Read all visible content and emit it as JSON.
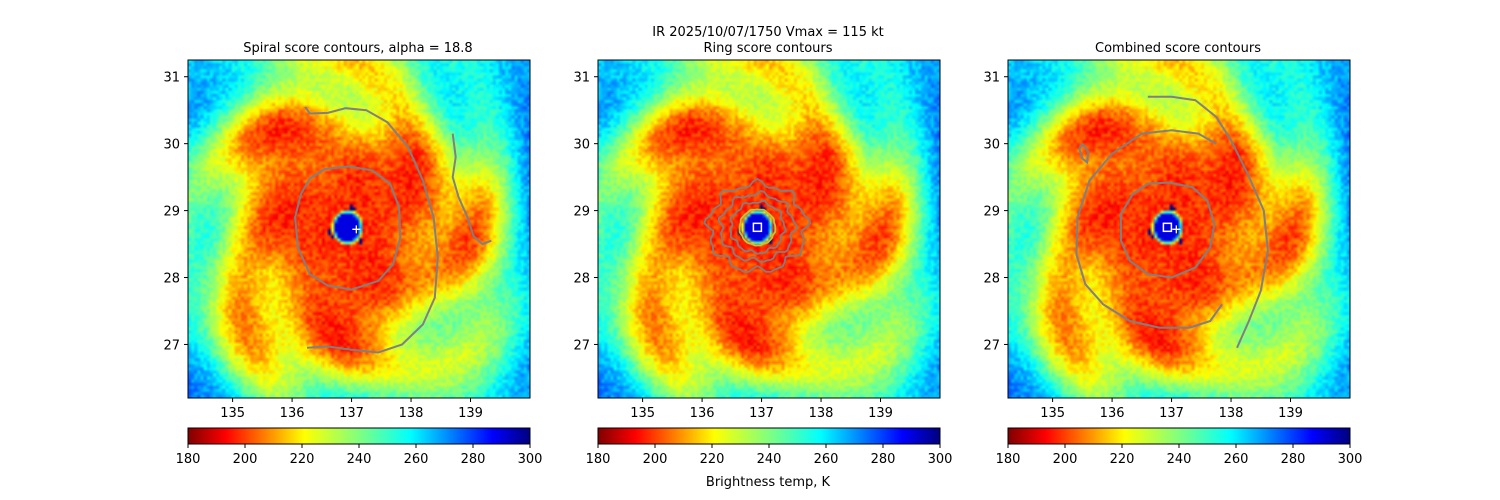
{
  "figure": {
    "suptitle": "IR  2025/10/07/1750    Vmax = 115 kt",
    "colorbar_label": "Brightness temp, K"
  },
  "chart_data": [
    {
      "type": "heatmap",
      "title": "Spiral score contours, alpha = 18.8",
      "xlabel": "",
      "ylabel": "",
      "xlim": [
        134.25,
        140.0
      ],
      "ylim": [
        26.2,
        31.25
      ],
      "xticks": [
        135,
        136,
        137,
        138,
        139
      ],
      "yticks": [
        27,
        28,
        29,
        30,
        31
      ],
      "colorbar": {
        "label": "",
        "range": [
          180,
          300
        ],
        "ticks": [
          180,
          200,
          220,
          240,
          260,
          280,
          300
        ],
        "colormap": "jet_r"
      },
      "field": {
        "variable": "brightness temperature (K)",
        "eye_center": [
          136.93,
          28.75
        ],
        "eye_temp": 290,
        "eye_radius_deg": 0.28,
        "core_temp": 198,
        "background_temp": 262
      },
      "markers": [
        {
          "kind": "plus",
          "x": 137.08,
          "y": 28.72,
          "color": "#ffffff"
        }
      ],
      "contours": [
        {
          "color": "#808080",
          "points": [
            [
              136.22,
              30.55
            ],
            [
              136.3,
              30.45
            ],
            [
              136.6,
              30.46
            ],
            [
              136.9,
              30.53
            ],
            [
              137.25,
              30.5
            ],
            [
              137.6,
              30.32
            ],
            [
              137.95,
              29.95
            ],
            [
              138.2,
              29.45
            ],
            [
              138.38,
              28.9
            ],
            [
              138.45,
              28.3
            ],
            [
              138.4,
              27.7
            ],
            [
              138.2,
              27.3
            ],
            [
              137.85,
              27.0
            ],
            [
              137.45,
              26.88
            ],
            [
              137.0,
              26.92
            ],
            [
              136.6,
              26.97
            ],
            [
              136.25,
              26.95
            ]
          ]
        },
        {
          "color": "#808080",
          "points": [
            [
              136.3,
              29.48
            ],
            [
              136.55,
              29.62
            ],
            [
              136.95,
              29.66
            ],
            [
              137.35,
              29.6
            ],
            [
              137.65,
              29.4
            ],
            [
              137.8,
              29.05
            ],
            [
              137.82,
              28.6
            ],
            [
              137.7,
              28.2
            ],
            [
              137.45,
              27.95
            ],
            [
              137.0,
              27.82
            ],
            [
              136.6,
              27.88
            ],
            [
              136.3,
              28.05
            ],
            [
              136.1,
              28.45
            ],
            [
              136.05,
              28.9
            ],
            [
              136.15,
              29.25
            ],
            [
              136.3,
              29.48
            ]
          ]
        },
        {
          "color": "#808080",
          "points": [
            [
              138.7,
              30.15
            ],
            [
              138.75,
              29.8
            ],
            [
              138.7,
              29.5
            ],
            [
              138.8,
              29.2
            ],
            [
              138.95,
              28.9
            ],
            [
              139.05,
              28.62
            ],
            [
              139.2,
              28.5
            ],
            [
              139.35,
              28.55
            ]
          ]
        }
      ]
    },
    {
      "type": "heatmap",
      "title": "Ring score contours",
      "xlabel": "",
      "ylabel": "",
      "xlim": [
        134.25,
        140.0
      ],
      "ylim": [
        26.2,
        31.25
      ],
      "xticks": [
        135,
        136,
        137,
        138,
        139
      ],
      "yticks": [
        27,
        28,
        29,
        30,
        31
      ],
      "colorbar": {
        "label": "Brightness temp, K",
        "range": [
          180,
          300
        ],
        "ticks": [
          180,
          200,
          220,
          240,
          260,
          280,
          300
        ],
        "colormap": "jet_r"
      },
      "field": {
        "variable": "brightness temperature (K)",
        "eye_center": [
          136.93,
          28.75
        ],
        "eye_temp": 290,
        "eye_radius_deg": 0.28,
        "core_temp": 198,
        "background_temp": 262
      },
      "markers": [
        {
          "kind": "square",
          "x": 136.93,
          "y": 28.75,
          "color": "#ffffff"
        }
      ],
      "contours": [
        {
          "color": "#808080",
          "ring": true,
          "cx": 136.93,
          "cy": 28.75,
          "rx": 0.82,
          "ry": 0.65,
          "jitter": 0.07
        },
        {
          "color": "#808080",
          "ring": true,
          "cx": 136.93,
          "cy": 28.75,
          "rx": 0.62,
          "ry": 0.5,
          "jitter": 0.06
        },
        {
          "color": "#808080",
          "ring": true,
          "cx": 136.93,
          "cy": 28.75,
          "rx": 0.45,
          "ry": 0.38,
          "jitter": 0.05
        },
        {
          "color": "#b8c83a",
          "ring": true,
          "cx": 136.93,
          "cy": 28.75,
          "rx": 0.3,
          "ry": 0.27,
          "jitter": 0.02
        }
      ]
    },
    {
      "type": "heatmap",
      "title": "Combined score contours",
      "xlabel": "",
      "ylabel": "",
      "xlim": [
        134.25,
        140.0
      ],
      "ylim": [
        26.2,
        31.25
      ],
      "xticks": [
        135,
        136,
        137,
        138,
        139
      ],
      "yticks": [
        27,
        28,
        29,
        30,
        31
      ],
      "colorbar": {
        "label": "",
        "range": [
          180,
          300
        ],
        "ticks": [
          180,
          200,
          220,
          240,
          260,
          280,
          300
        ],
        "colormap": "jet_r"
      },
      "field": {
        "variable": "brightness temperature (K)",
        "eye_center": [
          136.93,
          28.75
        ],
        "eye_temp": 290,
        "eye_radius_deg": 0.28,
        "core_temp": 198,
        "background_temp": 262
      },
      "markers": [
        {
          "kind": "square",
          "x": 136.93,
          "y": 28.75,
          "color": "#ffffff"
        },
        {
          "kind": "plus",
          "x": 137.08,
          "y": 28.72,
          "color": "#ffffff"
        }
      ],
      "contours": [
        {
          "color": "#808080",
          "points": [
            [
              136.6,
              30.7
            ],
            [
              137.0,
              30.7
            ],
            [
              137.4,
              30.65
            ],
            [
              137.75,
              30.4
            ],
            [
              138.0,
              30.05
            ],
            [
              138.28,
              29.55
            ],
            [
              138.55,
              29.0
            ],
            [
              138.62,
              28.4
            ],
            [
              138.5,
              27.8
            ],
            [
              138.3,
              27.35
            ],
            [
              138.1,
              26.95
            ]
          ]
        },
        {
          "color": "#808080",
          "points": [
            [
              137.75,
              30.0
            ],
            [
              137.45,
              30.15
            ],
            [
              137.0,
              30.2
            ],
            [
              136.5,
              30.15
            ],
            [
              136.0,
              29.85
            ],
            [
              135.62,
              29.45
            ],
            [
              135.42,
              28.9
            ],
            [
              135.4,
              28.35
            ],
            [
              135.55,
              27.9
            ],
            [
              135.85,
              27.6
            ],
            [
              136.3,
              27.35
            ],
            [
              136.8,
              27.25
            ],
            [
              137.3,
              27.25
            ],
            [
              137.65,
              27.35
            ],
            [
              137.85,
              27.6
            ]
          ]
        },
        {
          "color": "#808080",
          "points": [
            [
              136.95,
              29.42
            ],
            [
              137.35,
              29.35
            ],
            [
              137.6,
              29.15
            ],
            [
              137.72,
              28.8
            ],
            [
              137.65,
              28.45
            ],
            [
              137.4,
              28.15
            ],
            [
              137.0,
              28.0
            ],
            [
              136.6,
              28.05
            ],
            [
              136.3,
              28.25
            ],
            [
              136.15,
              28.55
            ],
            [
              136.15,
              28.95
            ],
            [
              136.35,
              29.25
            ],
            [
              136.6,
              29.4
            ],
            [
              136.95,
              29.42
            ]
          ]
        },
        {
          "color": "#808080",
          "points": [
            [
              135.5,
              30.0
            ],
            [
              135.6,
              29.88
            ],
            [
              135.58,
              29.72
            ],
            [
              135.5,
              29.78
            ],
            [
              135.45,
              29.92
            ],
            [
              135.5,
              30.0
            ]
          ]
        }
      ]
    }
  ]
}
